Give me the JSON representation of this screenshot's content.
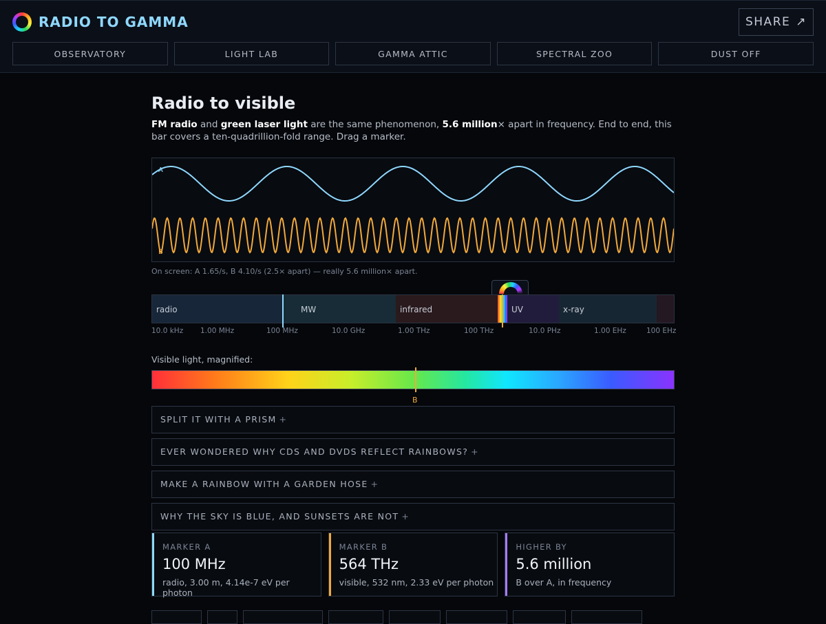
{
  "header": {
    "title": "RADIO TO GAMMA",
    "share_label": "SHARE",
    "share_icon": "↗",
    "nav": [
      "OBSERVATORY",
      "LIGHT LAB",
      "GAMMA ATTIC",
      "SPECTRAL ZOO",
      "DUST OFF"
    ]
  },
  "main": {
    "heading": "Radio to visible",
    "intro": {
      "a_name": "FM radio",
      "and": " and ",
      "b_name": "green laser light",
      "mid": " are the same phenomenon, ",
      "ratio": "5.6 million",
      "tail": "× apart in frequency. End to end, this bar covers a ten-quadrillion-fold range. Drag a marker."
    },
    "wave": {
      "label_a": "A",
      "label_b": "B",
      "color_a": "#8fd8ff",
      "color_b": "#f2a93b",
      "cycles_a": 4.5,
      "cycles_b": 41
    },
    "onscreen_text": "On screen: A 1.65/s, B 4.10/s (2.5× apart) — really 5.6 million× apart.",
    "spectrum": {
      "bands": [
        "radio",
        "MW",
        "infrared",
        "UV",
        "x-ray"
      ],
      "ticks": [
        "10.0 kHz",
        "1.00 MHz",
        "100 MHz",
        "10.0 GHz",
        "1.00 THz",
        "100 THz",
        "10.0 PHz",
        "1.00 EHz",
        "100 EHz"
      ]
    },
    "visible_label": "Visible light, magnified:",
    "visible_marker": "B",
    "accordions": [
      "SPLIT IT WITH A PRISM",
      "EVER WONDERED WHY CDS AND DVDS REFLECT RAINBOWS?",
      "MAKE A RAINBOW WITH A GARDEN HOSE",
      "WHY THE SKY IS BLUE, AND SUNSETS ARE NOT"
    ],
    "accordion_plus": "+",
    "cards": [
      {
        "label": "MARKER A",
        "value": "100 MHz",
        "sub": "radio, 3.00 m, 4.14e-7 eV per photon",
        "color": "#8fd8ff"
      },
      {
        "label": "MARKER B",
        "value": "564 THz",
        "sub": "visible, 532 nm, 2.33 eV per photon",
        "color": "#f2a93b"
      },
      {
        "label": "HIGHER BY",
        "value": "5.6 million",
        "sub": "B over A, in frequency",
        "color": "#a77bff"
      }
    ]
  }
}
